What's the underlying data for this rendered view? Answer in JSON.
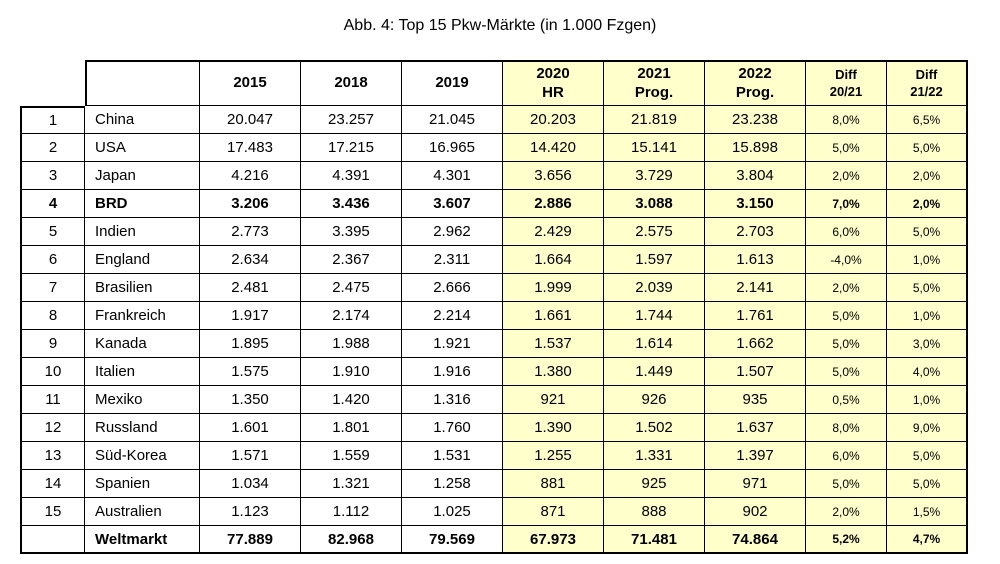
{
  "page": {
    "title": "Abb. 4: Top 15 Pkw-Märkte (in 1.000 Fzgen)"
  },
  "colors": {
    "highlight_bg": "#FFFFCC",
    "border": "#000000",
    "text": "#000000"
  },
  "chart_data": {
    "type": "table",
    "title": "Abb. 4: Top 15 Pkw-Märkte (in 1.000 Fzgen)",
    "columns": [
      {
        "label": "2015",
        "highlight": false,
        "small": false
      },
      {
        "label": "2018",
        "highlight": false,
        "small": false
      },
      {
        "label": "2019",
        "highlight": false,
        "small": false
      },
      {
        "label": "2020\nHR",
        "highlight": true,
        "small": false
      },
      {
        "label": "2021\nProg.",
        "highlight": true,
        "small": false
      },
      {
        "label": "2022\nProg.",
        "highlight": true,
        "small": false
      },
      {
        "label": "Diff\n20/21",
        "highlight": true,
        "small": true
      },
      {
        "label": "Diff\n21/22",
        "highlight": true,
        "small": true
      }
    ],
    "rows": [
      {
        "rank": "1",
        "name": "China",
        "bold": false,
        "values": [
          "20.047",
          "23.257",
          "21.045",
          "20.203",
          "21.819",
          "23.238",
          "8,0%",
          "6,5%"
        ]
      },
      {
        "rank": "2",
        "name": "USA",
        "bold": false,
        "values": [
          "17.483",
          "17.215",
          "16.965",
          "14.420",
          "15.141",
          "15.898",
          "5,0%",
          "5,0%"
        ]
      },
      {
        "rank": "3",
        "name": "Japan",
        "bold": false,
        "values": [
          "4.216",
          "4.391",
          "4.301",
          "3.656",
          "3.729",
          "3.804",
          "2,0%",
          "2,0%"
        ]
      },
      {
        "rank": "4",
        "name": "BRD",
        "bold": true,
        "values": [
          "3.206",
          "3.436",
          "3.607",
          "2.886",
          "3.088",
          "3.150",
          "7,0%",
          "2,0%"
        ]
      },
      {
        "rank": "5",
        "name": "Indien",
        "bold": false,
        "values": [
          "2.773",
          "3.395",
          "2.962",
          "2.429",
          "2.575",
          "2.703",
          "6,0%",
          "5,0%"
        ]
      },
      {
        "rank": "6",
        "name": "England",
        "bold": false,
        "values": [
          "2.634",
          "2.367",
          "2.311",
          "1.664",
          "1.597",
          "1.613",
          "-4,0%",
          "1,0%"
        ]
      },
      {
        "rank": "7",
        "name": "Brasilien",
        "bold": false,
        "values": [
          "2.481",
          "2.475",
          "2.666",
          "1.999",
          "2.039",
          "2.141",
          "2,0%",
          "5,0%"
        ]
      },
      {
        "rank": "8",
        "name": "Frankreich",
        "bold": false,
        "values": [
          "1.917",
          "2.174",
          "2.214",
          "1.661",
          "1.744",
          "1.761",
          "5,0%",
          "1,0%"
        ]
      },
      {
        "rank": "9",
        "name": "Kanada",
        "bold": false,
        "values": [
          "1.895",
          "1.988",
          "1.921",
          "1.537",
          "1.614",
          "1.662",
          "5,0%",
          "3,0%"
        ]
      },
      {
        "rank": "10",
        "name": "Italien",
        "bold": false,
        "values": [
          "1.575",
          "1.910",
          "1.916",
          "1.380",
          "1.449",
          "1.507",
          "5,0%",
          "4,0%"
        ]
      },
      {
        "rank": "11",
        "name": "Mexiko",
        "bold": false,
        "values": [
          "1.350",
          "1.420",
          "1.316",
          "921",
          "926",
          "935",
          "0,5%",
          "1,0%"
        ]
      },
      {
        "rank": "12",
        "name": "Russland",
        "bold": false,
        "values": [
          "1.601",
          "1.801",
          "1.760",
          "1.390",
          "1.502",
          "1.637",
          "8,0%",
          "9,0%"
        ]
      },
      {
        "rank": "13",
        "name": "Süd-Korea",
        "bold": false,
        "values": [
          "1.571",
          "1.559",
          "1.531",
          "1.255",
          "1.331",
          "1.397",
          "6,0%",
          "5,0%"
        ]
      },
      {
        "rank": "14",
        "name": "Spanien",
        "bold": false,
        "values": [
          "1.034",
          "1.321",
          "1.258",
          "881",
          "925",
          "971",
          "5,0%",
          "5,0%"
        ]
      },
      {
        "rank": "15",
        "name": "Australien",
        "bold": false,
        "values": [
          "1.123",
          "1.112",
          "1.025",
          "871",
          "888",
          "902",
          "2,0%",
          "1,5%"
        ]
      },
      {
        "rank": "",
        "name": "Weltmarkt",
        "bold": true,
        "values": [
          "77.889",
          "82.968",
          "79.569",
          "67.973",
          "71.481",
          "74.864",
          "5,2%",
          "4,7%"
        ]
      }
    ]
  }
}
